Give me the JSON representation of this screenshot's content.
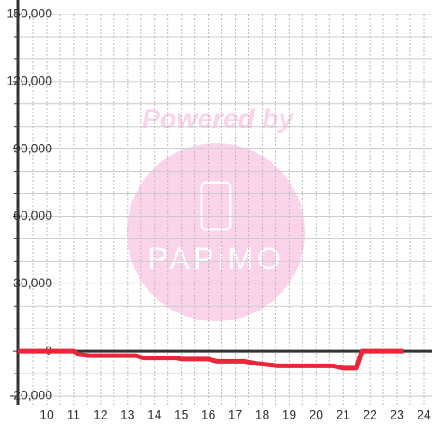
{
  "chart_data": {
    "type": "line",
    "watermark_text": "Powered by",
    "watermark_logo": "PAPiMO",
    "x": [
      8.93,
      11.0,
      11.2,
      11.6,
      13.3,
      13.6,
      14.8,
      15.0,
      16.0,
      16.3,
      17.3,
      17.8,
      18.6,
      20.6,
      21.0,
      21.5,
      21.7,
      23.25
    ],
    "series": [
      {
        "color": "#e8273a",
        "values": [
          0,
          0,
          -1500,
          -2000,
          -2000,
          -3000,
          -3000,
          -3500,
          -3500,
          -4500,
          -4500,
          -5500,
          -6500,
          -6500,
          -7500,
          -7500,
          0,
          0
        ]
      }
    ],
    "xlim": [
      8.93,
      24.3
    ],
    "xticks": [
      10,
      11,
      12,
      13,
      14,
      15,
      16,
      17,
      18,
      19,
      20,
      21,
      22,
      23,
      24
    ],
    "xminorticks": [
      9.5,
      10.5,
      11.5,
      12.5,
      13.5,
      14.5,
      15.5,
      16.5,
      17.5,
      18.5,
      19.5,
      20.5,
      21.5,
      22.5,
      23.5
    ],
    "ylim": [
      -20000,
      150000
    ],
    "yticks": [
      {
        "value": -20000,
        "label": "-20,000"
      },
      0,
      {
        "value": 30000,
        "label": "30,000"
      },
      {
        "value": 60000,
        "label": "60,000"
      },
      {
        "value": 90000,
        "label": "90,000"
      },
      {
        "value": 120000,
        "label": "120,000"
      },
      {
        "value": 150000,
        "label": "150,000"
      }
    ],
    "yminorticks": [
      -10000,
      10000,
      20000,
      40000,
      50000,
      70000,
      80000,
      100000,
      110000,
      130000,
      140000
    ],
    "grid": true
  }
}
